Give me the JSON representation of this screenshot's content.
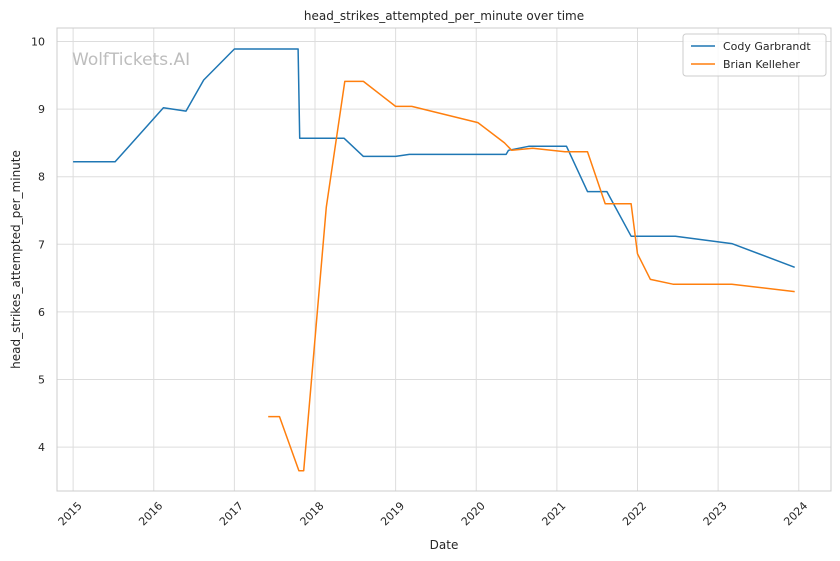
{
  "chart_data": {
    "type": "line",
    "title": "head_strikes_attempted_per_minute over time",
    "xlabel": "Date",
    "ylabel": "head_strikes_attempted_per_minute",
    "watermark": "WolfTickets.AI",
    "xlim": [
      2014.8,
      2024.4
    ],
    "ylim": [
      3.35,
      10.2
    ],
    "xticks": [
      2015,
      2016,
      2017,
      2018,
      2019,
      2020,
      2021,
      2022,
      2023,
      2024
    ],
    "xtick_labels": [
      "2015",
      "2016",
      "2017",
      "2018",
      "2019",
      "2020",
      "2021",
      "2022",
      "2023",
      "2024"
    ],
    "yticks": [
      4,
      5,
      6,
      7,
      8,
      9,
      10
    ],
    "ytick_labels": [
      "4",
      "5",
      "6",
      "7",
      "8",
      "9",
      "10"
    ],
    "grid": true,
    "legend_position": "top-right",
    "series": [
      {
        "name": "Cody Garbrandt",
        "color": "#1f77b4",
        "x": [
          2015.0,
          2015.52,
          2016.12,
          2016.4,
          2016.62,
          2017.0,
          2017.79,
          2017.81,
          2018.36,
          2018.6,
          2019.0,
          2019.17,
          2020.37,
          2020.4,
          2020.65,
          2021.12,
          2021.38,
          2021.62,
          2021.92,
          2022.47,
          2023.17,
          2023.95
        ],
        "y": [
          8.22,
          8.22,
          9.02,
          8.97,
          9.43,
          9.89,
          9.89,
          8.57,
          8.57,
          8.3,
          8.3,
          8.33,
          8.33,
          8.39,
          8.45,
          8.45,
          7.78,
          7.78,
          7.12,
          7.12,
          7.01,
          6.66
        ]
      },
      {
        "name": "Brian Kelleher",
        "color": "#ff7f0e",
        "x": [
          2017.42,
          2017.56,
          2017.8,
          2017.86,
          2018.14,
          2018.37,
          2018.6,
          2019.0,
          2019.2,
          2020.02,
          2020.35,
          2020.44,
          2020.7,
          2021.1,
          2021.38,
          2021.6,
          2021.92,
          2022.0,
          2022.16,
          2022.44,
          2023.17,
          2023.95
        ],
        "y": [
          4.45,
          4.45,
          3.65,
          3.65,
          7.55,
          9.41,
          9.41,
          9.04,
          9.04,
          8.8,
          8.5,
          8.39,
          8.42,
          8.37,
          8.37,
          7.6,
          7.6,
          6.86,
          6.48,
          6.41,
          6.41,
          6.3
        ]
      }
    ]
  }
}
